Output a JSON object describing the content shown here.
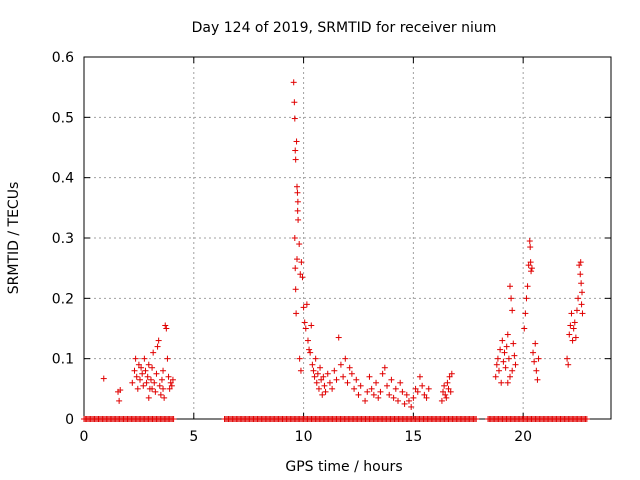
{
  "chart_data": {
    "type": "scatter",
    "title": "Day 124 of 2019, SRMTID for receiver nium",
    "xlabel": "GPS time / hours",
    "ylabel": "SRMTID / TECUs",
    "xlim": [
      0,
      24
    ],
    "ylim": [
      0,
      0.6
    ],
    "xticks": [
      "0",
      "5",
      "10",
      "15",
      "20"
    ],
    "yticks": [
      "0",
      "0.1",
      "0.2",
      "0.3",
      "0.4",
      "0.5",
      "0.6"
    ],
    "grid": true,
    "marker": "+",
    "color": "#e00000",
    "series": [
      {
        "name": "SRMTID",
        "points": [
          [
            0.9,
            0.067
          ],
          [
            1.55,
            0.045
          ],
          [
            1.6,
            0.03
          ],
          [
            1.65,
            0.048
          ],
          [
            2.2,
            0.06
          ],
          [
            2.3,
            0.08
          ],
          [
            2.35,
            0.1
          ],
          [
            2.4,
            0.07
          ],
          [
            2.45,
            0.05
          ],
          [
            2.5,
            0.09
          ],
          [
            2.55,
            0.065
          ],
          [
            2.6,
            0.085
          ],
          [
            2.65,
            0.075
          ],
          [
            2.7,
            0.055
          ],
          [
            2.75,
            0.1
          ],
          [
            2.8,
            0.08
          ],
          [
            2.85,
            0.06
          ],
          [
            2.9,
            0.07
          ],
          [
            2.95,
            0.09
          ],
          [
            3.0,
            0.05
          ],
          [
            3.05,
            0.065
          ],
          [
            3.1,
            0.085
          ],
          [
            3.15,
            0.11
          ],
          [
            3.2,
            0.06
          ],
          [
            3.25,
            0.045
          ],
          [
            3.3,
            0.075
          ],
          [
            3.35,
            0.12
          ],
          [
            3.4,
            0.13
          ],
          [
            3.45,
            0.055
          ],
          [
            3.5,
            0.04
          ],
          [
            3.55,
            0.065
          ],
          [
            3.6,
            0.08
          ],
          [
            3.65,
            0.035
          ],
          [
            3.7,
            0.155
          ],
          [
            3.75,
            0.15
          ],
          [
            3.8,
            0.1
          ],
          [
            3.85,
            0.07
          ],
          [
            3.9,
            0.05
          ],
          [
            3.95,
            0.06
          ],
          [
            4.0,
            0.055
          ],
          [
            4.05,
            0.065
          ],
          [
            3.1,
            0.05
          ],
          [
            2.95,
            0.035
          ],
          [
            3.6,
            0.05
          ],
          [
            9.55,
            0.558
          ],
          [
            9.58,
            0.525
          ],
          [
            9.6,
            0.498
          ],
          [
            9.62,
            0.445
          ],
          [
            9.64,
            0.43
          ],
          [
            9.68,
            0.46
          ],
          [
            9.7,
            0.385
          ],
          [
            9.72,
            0.375
          ],
          [
            9.74,
            0.36
          ],
          [
            9.73,
            0.345
          ],
          [
            9.75,
            0.33
          ],
          [
            9.6,
            0.3
          ],
          [
            9.62,
            0.25
          ],
          [
            9.64,
            0.215
          ],
          [
            9.66,
            0.175
          ],
          [
            9.7,
            0.265
          ],
          [
            9.8,
            0.29
          ],
          [
            9.85,
            0.24
          ],
          [
            9.9,
            0.26
          ],
          [
            9.95,
            0.235
          ],
          [
            9.82,
            0.1
          ],
          [
            9.88,
            0.08
          ],
          [
            10.0,
            0.185
          ],
          [
            10.05,
            0.16
          ],
          [
            10.1,
            0.15
          ],
          [
            10.15,
            0.19
          ],
          [
            10.2,
            0.13
          ],
          [
            10.25,
            0.115
          ],
          [
            10.3,
            0.11
          ],
          [
            10.35,
            0.155
          ],
          [
            10.4,
            0.09
          ],
          [
            10.45,
            0.08
          ],
          [
            10.5,
            0.07
          ],
          [
            10.55,
            0.1
          ],
          [
            10.6,
            0.06
          ],
          [
            10.65,
            0.075
          ],
          [
            10.7,
            0.05
          ],
          [
            10.75,
            0.085
          ],
          [
            10.8,
            0.065
          ],
          [
            10.85,
            0.04
          ],
          [
            10.9,
            0.07
          ],
          [
            10.95,
            0.055
          ],
          [
            11.0,
            0.045
          ],
          [
            11.1,
            0.075
          ],
          [
            11.2,
            0.06
          ],
          [
            11.3,
            0.05
          ],
          [
            11.4,
            0.08
          ],
          [
            11.5,
            0.065
          ],
          [
            11.6,
            0.135
          ],
          [
            11.7,
            0.09
          ],
          [
            11.8,
            0.07
          ],
          [
            11.9,
            0.1
          ],
          [
            12.0,
            0.06
          ],
          [
            12.1,
            0.085
          ],
          [
            12.2,
            0.075
          ],
          [
            12.3,
            0.05
          ],
          [
            12.4,
            0.065
          ],
          [
            12.5,
            0.04
          ],
          [
            12.6,
            0.055
          ],
          [
            12.8,
            0.03
          ],
          [
            12.9,
            0.045
          ],
          [
            13.0,
            0.07
          ],
          [
            13.1,
            0.05
          ],
          [
            13.2,
            0.04
          ],
          [
            13.3,
            0.06
          ],
          [
            13.4,
            0.035
          ],
          [
            13.5,
            0.045
          ],
          [
            13.6,
            0.075
          ],
          [
            13.7,
            0.085
          ],
          [
            13.8,
            0.055
          ],
          [
            13.9,
            0.04
          ],
          [
            14.0,
            0.065
          ],
          [
            14.1,
            0.035
          ],
          [
            14.2,
            0.05
          ],
          [
            14.3,
            0.03
          ],
          [
            14.4,
            0.06
          ],
          [
            14.5,
            0.045
          ],
          [
            14.6,
            0.025
          ],
          [
            14.7,
            0.04
          ],
          [
            14.8,
            0.03
          ],
          [
            14.9,
            0.02
          ],
          [
            15.0,
            0.035
          ],
          [
            15.1,
            0.05
          ],
          [
            15.2,
            0.045
          ],
          [
            15.3,
            0.07
          ],
          [
            15.4,
            0.055
          ],
          [
            15.5,
            0.04
          ],
          [
            15.6,
            0.035
          ],
          [
            15.7,
            0.05
          ],
          [
            16.3,
            0.03
          ],
          [
            16.35,
            0.045
          ],
          [
            16.4,
            0.055
          ],
          [
            16.45,
            0.04
          ],
          [
            16.5,
            0.035
          ],
          [
            16.55,
            0.06
          ],
          [
            16.6,
            0.05
          ],
          [
            16.65,
            0.07
          ],
          [
            16.7,
            0.045
          ],
          [
            16.75,
            0.075
          ],
          [
            18.75,
            0.07
          ],
          [
            18.8,
            0.09
          ],
          [
            18.85,
            0.1
          ],
          [
            18.9,
            0.08
          ],
          [
            18.95,
            0.115
          ],
          [
            19.0,
            0.06
          ],
          [
            19.05,
            0.13
          ],
          [
            19.1,
            0.095
          ],
          [
            19.15,
            0.11
          ],
          [
            19.2,
            0.085
          ],
          [
            19.25,
            0.12
          ],
          [
            19.3,
            0.14
          ],
          [
            19.35,
            0.1
          ],
          [
            19.4,
            0.22
          ],
          [
            19.45,
            0.2
          ],
          [
            19.5,
            0.18
          ],
          [
            19.55,
            0.125
          ],
          [
            19.6,
            0.105
          ],
          [
            19.65,
            0.09
          ],
          [
            19.4,
            0.07
          ],
          [
            19.5,
            0.08
          ],
          [
            19.3,
            0.06
          ],
          [
            20.05,
            0.15
          ],
          [
            20.1,
            0.175
          ],
          [
            20.15,
            0.2
          ],
          [
            20.2,
            0.22
          ],
          [
            20.25,
            0.255
          ],
          [
            20.3,
            0.295
          ],
          [
            20.32,
            0.285
          ],
          [
            20.34,
            0.26
          ],
          [
            20.36,
            0.245
          ],
          [
            20.4,
            0.25
          ],
          [
            20.45,
            0.11
          ],
          [
            20.5,
            0.095
          ],
          [
            20.55,
            0.125
          ],
          [
            20.6,
            0.08
          ],
          [
            20.65,
            0.065
          ],
          [
            20.7,
            0.1
          ],
          [
            22.0,
            0.1
          ],
          [
            22.05,
            0.09
          ],
          [
            22.1,
            0.14
          ],
          [
            22.15,
            0.155
          ],
          [
            22.2,
            0.175
          ],
          [
            22.25,
            0.13
          ],
          [
            22.3,
            0.15
          ],
          [
            22.35,
            0.16
          ],
          [
            22.4,
            0.135
          ],
          [
            22.45,
            0.18
          ],
          [
            22.5,
            0.2
          ],
          [
            22.55,
            0.255
          ],
          [
            22.6,
            0.24
          ],
          [
            22.62,
            0.26
          ],
          [
            22.64,
            0.225
          ],
          [
            22.66,
            0.19
          ],
          [
            22.68,
            0.21
          ],
          [
            22.7,
            0.175
          ]
        ]
      }
    ],
    "zero_segments": [
      [
        0.0,
        4.1
      ],
      [
        6.4,
        17.9
      ],
      [
        18.4,
        22.9
      ]
    ]
  }
}
